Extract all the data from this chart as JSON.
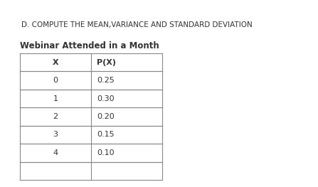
{
  "title_line1": "D. COMPUTE THE MEAN,VARIANCE AND STANDARD DEVIATION",
  "subtitle": "Webinar Attended in a Month",
  "col_headers": [
    "X",
    "P(X)"
  ],
  "rows": [
    [
      "0",
      "0.25"
    ],
    [
      "1",
      "0.30"
    ],
    [
      "2",
      "0.20"
    ],
    [
      "3",
      "0.15"
    ],
    [
      "4",
      "0.10"
    ],
    [
      "",
      ""
    ]
  ],
  "background_color": "#ffffff",
  "title_fontsize": 7.5,
  "subtitle_fontsize": 8.5,
  "table_fontsize": 8,
  "text_color": "#333333",
  "table_edge_color": "#888888",
  "header_bg": "#ffffff",
  "cell_bg": "#ffffff"
}
